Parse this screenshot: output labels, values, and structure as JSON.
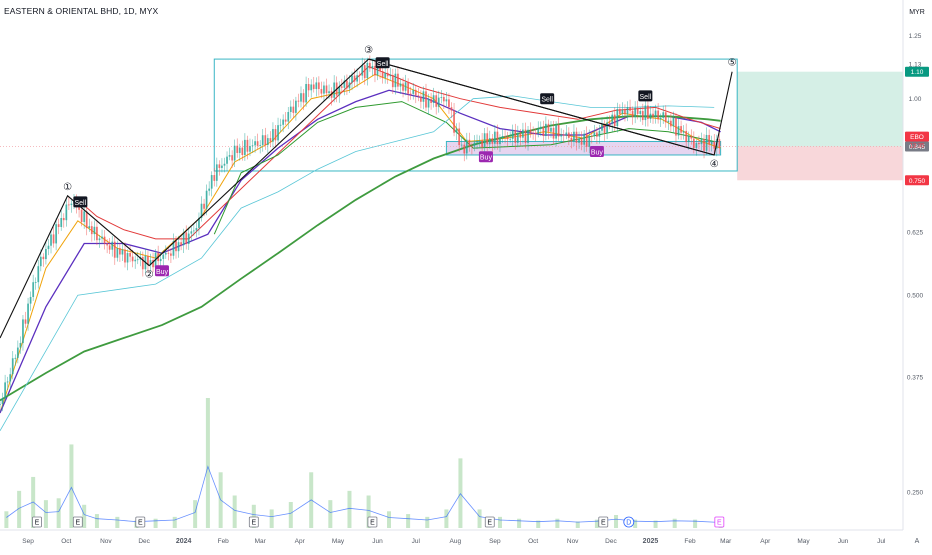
{
  "header": {
    "title": "EASTERN & ORIENTAL BHD, 1D, MYX",
    "currency": "MYR",
    "scale_toggle": "A"
  },
  "colors": {
    "background": "#ffffff",
    "ma_short": "#f0a30a",
    "ma_mid": "#5b2fbf",
    "ma_long": "#3f9b3f",
    "trail_upper": "#e23a3a",
    "trail_lower": "#2f9a2f",
    "channel": "#58c6d6",
    "wave_line": "#111111",
    "box_outline": "#39b6c4",
    "demand_zone": "#e6d5f0",
    "profit_zone": "#d5efe6",
    "loss_zone": "#f8d7da",
    "volume": "#c8e6c9",
    "buy_badge": "#9c27b0",
    "sell_badge": "#131722",
    "price_label": "#f23645"
  },
  "chart_data": {
    "type": "candlestick",
    "title": "EASTERN & ORIENTAL BHD, 1D, MYX",
    "y_axis": {
      "unit": "MYR",
      "scale": "log",
      "range": [
        0.22,
        1.32
      ],
      "tick_labels": [
        "1.25",
        "1.13",
        "1.00",
        "0.875",
        "0.750",
        "0.625",
        "0.500",
        "0.375",
        "0.250"
      ],
      "tick_values": [
        1.25,
        1.13,
        1.0,
        0.875,
        0.75,
        0.625,
        0.5,
        0.375,
        0.25
      ]
    },
    "x_axis": {
      "tick_labels": [
        "Sep",
        "Oct",
        "Nov",
        "Dec",
        "2024",
        "Feb",
        "Mar",
        "Apr",
        "May",
        "Jun",
        "Jul",
        "Aug",
        "Sep",
        "Oct",
        "Nov",
        "Dec",
        "2025",
        "Feb",
        "Mar",
        "Apr",
        "May",
        "Jun",
        "Jul"
      ],
      "tick_dates": [
        "2023-09-01",
        "2023-10-01",
        "2023-11-01",
        "2023-12-01",
        "2024-01-01",
        "2024-02-01",
        "2024-03-01",
        "2024-04-01",
        "2024-05-01",
        "2024-06-01",
        "2024-07-01",
        "2024-08-01",
        "2024-09-01",
        "2024-10-01",
        "2024-11-01",
        "2024-12-01",
        "2025-01-01",
        "2025-02-01",
        "2025-03-01",
        "2025-04-01",
        "2025-05-01",
        "2025-06-01",
        "2025-07-01"
      ],
      "range": [
        "2023-08-10",
        "2025-07-18"
      ]
    },
    "price_path": [
      [
        "2023-08-10",
        0.34
      ],
      [
        "2023-08-25",
        0.42
      ],
      [
        "2023-09-10",
        0.56
      ],
      [
        "2023-09-25",
        0.64
      ],
      [
        "2023-10-05",
        0.7
      ],
      [
        "2023-10-20",
        0.63
      ],
      [
        "2023-11-05",
        0.59
      ],
      [
        "2023-11-20",
        0.57
      ],
      [
        "2023-12-05",
        0.56
      ],
      [
        "2023-12-20",
        0.58
      ],
      [
        "2024-01-10",
        0.63
      ],
      [
        "2024-01-25",
        0.77
      ],
      [
        "2024-02-10",
        0.83
      ],
      [
        "2024-02-25",
        0.85
      ],
      [
        "2024-03-10",
        0.87
      ],
      [
        "2024-03-25",
        0.96
      ],
      [
        "2024-04-10",
        1.05
      ],
      [
        "2024-04-25",
        1.02
      ],
      [
        "2024-05-10",
        1.06
      ],
      [
        "2024-05-25",
        1.12
      ],
      [
        "2024-06-10",
        1.08
      ],
      [
        "2024-06-25",
        1.03
      ],
      [
        "2024-07-10",
        0.99
      ],
      [
        "2024-07-25",
        1.0
      ],
      [
        "2024-08-05",
        0.84
      ],
      [
        "2024-08-20",
        0.86
      ],
      [
        "2024-09-05",
        0.87
      ],
      [
        "2024-09-25",
        0.88
      ],
      [
        "2024-10-10",
        0.9
      ],
      [
        "2024-10-25",
        0.88
      ],
      [
        "2024-11-10",
        0.86
      ],
      [
        "2024-11-25",
        0.9
      ],
      [
        "2024-12-10",
        0.96
      ],
      [
        "2024-12-25",
        0.95
      ],
      [
        "2025-01-10",
        0.94
      ],
      [
        "2025-01-25",
        0.89
      ],
      [
        "2025-02-05",
        0.85
      ],
      [
        "2025-02-15",
        0.86
      ],
      [
        "2025-02-25",
        0.845
      ]
    ],
    "series": [
      {
        "name": "",
        "key": "ma_short",
        "values": [
          [
            "2023-08-10",
            0.33
          ],
          [
            "2023-09-15",
            0.55
          ],
          [
            "2023-10-10",
            0.65
          ],
          [
            "2023-11-10",
            0.59
          ],
          [
            "2023-12-10",
            0.57
          ],
          [
            "2024-01-15",
            0.66
          ],
          [
            "2024-02-10",
            0.8
          ],
          [
            "2024-03-10",
            0.86
          ],
          [
            "2024-04-10",
            1.0
          ],
          [
            "2024-05-10",
            1.03
          ],
          [
            "2024-05-30",
            1.09
          ],
          [
            "2024-06-20",
            1.05
          ],
          [
            "2024-07-15",
            1.0
          ],
          [
            "2024-08-10",
            0.86
          ],
          [
            "2024-09-10",
            0.87
          ],
          [
            "2024-10-10",
            0.89
          ],
          [
            "2024-11-10",
            0.87
          ],
          [
            "2024-12-10",
            0.95
          ],
          [
            "2025-01-10",
            0.93
          ],
          [
            "2025-02-10",
            0.86
          ],
          [
            "2025-02-25",
            0.84
          ]
        ]
      },
      {
        "name": "",
        "key": "ma_mid",
        "values": [
          [
            "2023-08-10",
            0.33
          ],
          [
            "2023-09-15",
            0.48
          ],
          [
            "2023-10-15",
            0.6
          ],
          [
            "2023-11-15",
            0.6
          ],
          [
            "2023-12-15",
            0.58
          ],
          [
            "2024-01-20",
            0.62
          ],
          [
            "2024-02-15",
            0.75
          ],
          [
            "2024-03-15",
            0.84
          ],
          [
            "2024-04-15",
            0.93
          ],
          [
            "2024-05-15",
            0.99
          ],
          [
            "2024-06-10",
            1.03
          ],
          [
            "2024-07-10",
            1.0
          ],
          [
            "2024-08-05",
            0.95
          ],
          [
            "2024-09-05",
            0.9
          ],
          [
            "2024-10-10",
            0.88
          ],
          [
            "2024-11-10",
            0.88
          ],
          [
            "2024-12-15",
            0.94
          ],
          [
            "2025-01-15",
            0.94
          ],
          [
            "2025-02-10",
            0.92
          ],
          [
            "2025-02-25",
            0.89
          ]
        ]
      },
      {
        "name": "",
        "key": "ma_long",
        "values": [
          [
            "2023-08-10",
            0.345
          ],
          [
            "2023-09-15",
            0.38
          ],
          [
            "2023-10-15",
            0.41
          ],
          [
            "2023-11-15",
            0.43
          ],
          [
            "2023-12-15",
            0.45
          ],
          [
            "2024-01-15",
            0.48
          ],
          [
            "2024-02-15",
            0.53
          ],
          [
            "2024-03-15",
            0.58
          ],
          [
            "2024-04-15",
            0.64
          ],
          [
            "2024-05-15",
            0.7
          ],
          [
            "2024-06-15",
            0.76
          ],
          [
            "2024-07-15",
            0.81
          ],
          [
            "2024-08-15",
            0.85
          ],
          [
            "2024-09-15",
            0.88
          ],
          [
            "2024-10-15",
            0.91
          ],
          [
            "2024-11-15",
            0.93
          ],
          [
            "2024-12-15",
            0.94
          ],
          [
            "2025-01-15",
            0.94
          ],
          [
            "2025-02-15",
            0.93
          ],
          [
            "2025-02-25",
            0.925
          ]
        ]
      },
      {
        "name": "",
        "key": "trail_upper",
        "values": [
          [
            "2023-10-10",
            0.7
          ],
          [
            "2023-10-25",
            0.66
          ],
          [
            "2023-11-15",
            0.63
          ],
          [
            "2023-12-10",
            0.61
          ],
          [
            "2024-01-05",
            0.61
          ],
          [
            "2024-05-25",
            1.12
          ],
          [
            "2024-06-15",
            1.08
          ],
          [
            "2024-07-05",
            1.04
          ],
          [
            "2024-08-05",
            1.0
          ],
          [
            "2024-09-05",
            0.97
          ],
          [
            "2024-10-05",
            0.95
          ],
          [
            "2024-11-05",
            0.93
          ],
          [
            "2024-12-05",
            0.96
          ],
          [
            "2025-01-05",
            0.97
          ],
          [
            "2025-02-01",
            0.93
          ],
          [
            "2025-02-25",
            0.9
          ]
        ]
      },
      {
        "name": "",
        "key": "trail_lower",
        "values": [
          [
            "2024-01-25",
            0.62
          ],
          [
            "2024-02-15",
            0.77
          ],
          [
            "2024-03-15",
            0.82
          ],
          [
            "2024-04-15",
            0.92
          ],
          [
            "2024-05-15",
            0.97
          ],
          [
            "2024-06-20",
            0.99
          ],
          [
            "2024-07-25",
            0.92
          ],
          [
            "2024-08-15",
            0.84
          ],
          [
            "2024-10-15",
            0.85
          ],
          [
            "2024-12-15",
            0.9
          ],
          [
            "2025-01-15",
            0.89
          ],
          [
            "2025-02-20",
            0.86
          ]
        ]
      },
      {
        "name": "",
        "key": "channel",
        "values": [
          [
            "2023-08-10",
            0.31
          ],
          [
            "2023-10-10",
            0.5
          ],
          [
            "2023-12-10",
            0.52
          ],
          [
            "2024-01-15",
            0.57
          ],
          [
            "2024-02-15",
            0.68
          ],
          [
            "2024-03-15",
            0.72
          ],
          [
            "2024-04-15",
            0.78
          ],
          [
            "2024-05-15",
            0.83
          ],
          [
            "2024-06-15",
            0.86
          ],
          [
            "2024-07-15",
            0.89
          ],
          [
            "2024-08-15",
            1.0
          ],
          [
            "2024-09-15",
            1.01
          ],
          [
            "2024-10-15",
            0.99
          ],
          [
            "2024-11-15",
            0.97
          ],
          [
            "2024-12-15",
            0.97
          ],
          [
            "2025-01-15",
            0.975
          ],
          [
            "2025-02-20",
            0.97
          ]
        ]
      }
    ],
    "wave_points": [
      {
        "date": "2023-08-10",
        "price": 0.43,
        "label": ""
      },
      {
        "date": "2023-10-02",
        "price": 0.71,
        "label": "①"
      },
      {
        "date": "2023-12-05",
        "price": 0.555,
        "label": "②"
      },
      {
        "date": "2024-05-25",
        "price": 1.15,
        "label": "③"
      },
      {
        "date": "2025-02-20",
        "price": 0.82,
        "label": "④"
      },
      {
        "date": "2025-03-06",
        "price": 1.1,
        "label": "⑤"
      }
    ],
    "signals": [
      {
        "label": "Sell",
        "date": "2023-10-12",
        "price": 0.695
      },
      {
        "label": "Buy",
        "date": "2023-12-15",
        "price": 0.545
      },
      {
        "label": "Sell",
        "date": "2024-06-05",
        "price": 1.135
      },
      {
        "label": "Sell",
        "date": "2024-10-12",
        "price": 1.0
      },
      {
        "label": "Buy",
        "date": "2024-08-25",
        "price": 0.815
      },
      {
        "label": "Buy",
        "date": "2024-11-20",
        "price": 0.83
      },
      {
        "label": "Sell",
        "date": "2024-12-28",
        "price": 1.01
      }
    ],
    "range_box": {
      "date_from": "2024-01-25",
      "date_to": "2025-03-10",
      "price_top": 1.15,
      "price_bottom": 0.775
    },
    "demand_zone": {
      "date_from": "2024-07-25",
      "date_to": "2025-02-25",
      "price_top": 0.86,
      "price_bottom": 0.82
    },
    "position": {
      "date_from": "2025-03-10",
      "date_to": "2025-07-18",
      "entry": 0.845,
      "target": 1.1,
      "stop": 0.75
    },
    "price_labels": [
      {
        "text": "1.10",
        "price": 1.1,
        "color": "#089981"
      },
      {
        "text": "EBO",
        "price": 0.875,
        "color": "#f23645"
      },
      {
        "text": "0.845",
        "price": 0.845,
        "color": "#787b86"
      },
      {
        "text": "0.750",
        "price": 0.75,
        "color": "#f23645"
      }
    ],
    "last_price": {
      "value": "0.845",
      "countdown": "13:35",
      "symbol": "EBO"
    },
    "volume": [
      [
        "2023-08-15",
        18
      ],
      [
        "2023-08-25",
        40
      ],
      [
        "2023-09-05",
        55
      ],
      [
        "2023-09-15",
        30
      ],
      [
        "2023-09-25",
        32
      ],
      [
        "2023-10-05",
        90
      ],
      [
        "2023-10-15",
        25
      ],
      [
        "2023-10-25",
        15
      ],
      [
        "2023-11-10",
        12
      ],
      [
        "2023-11-25",
        8
      ],
      [
        "2023-12-10",
        10
      ],
      [
        "2023-12-25",
        12
      ],
      [
        "2024-01-10",
        30
      ],
      [
        "2024-01-20",
        140
      ],
      [
        "2024-01-30",
        60
      ],
      [
        "2024-02-10",
        35
      ],
      [
        "2024-02-25",
        25
      ],
      [
        "2024-03-10",
        20
      ],
      [
        "2024-03-25",
        28
      ],
      [
        "2024-04-10",
        60
      ],
      [
        "2024-04-25",
        30
      ],
      [
        "2024-05-10",
        40
      ],
      [
        "2024-05-25",
        35
      ],
      [
        "2024-06-10",
        18
      ],
      [
        "2024-06-25",
        15
      ],
      [
        "2024-07-10",
        12
      ],
      [
        "2024-07-25",
        20
      ],
      [
        "2024-08-05",
        75
      ],
      [
        "2024-08-20",
        20
      ],
      [
        "2024-09-05",
        12
      ],
      [
        "2024-09-20",
        10
      ],
      [
        "2024-10-05",
        8
      ],
      [
        "2024-10-20",
        10
      ],
      [
        "2024-11-05",
        7
      ],
      [
        "2024-11-20",
        9
      ],
      [
        "2024-12-05",
        14
      ],
      [
        "2024-12-20",
        9
      ],
      [
        "2025-01-05",
        8
      ],
      [
        "2025-01-20",
        10
      ],
      [
        "2025-02-05",
        9
      ],
      [
        "2025-02-25",
        6
      ]
    ],
    "events": [
      {
        "label": "E",
        "date": "2023-09-08"
      },
      {
        "label": "E",
        "date": "2023-10-10"
      },
      {
        "label": "E",
        "date": "2023-11-28"
      },
      {
        "label": "E",
        "date": "2024-02-25"
      },
      {
        "label": "E",
        "date": "2024-05-28"
      },
      {
        "label": "E",
        "date": "2024-08-28"
      },
      {
        "label": "E",
        "date": "2024-11-25"
      },
      {
        "label": "D",
        "date": "2024-12-15"
      },
      {
        "label": "E",
        "date": "2025-02-24"
      }
    ],
    "grid": false,
    "legend": "none"
  }
}
